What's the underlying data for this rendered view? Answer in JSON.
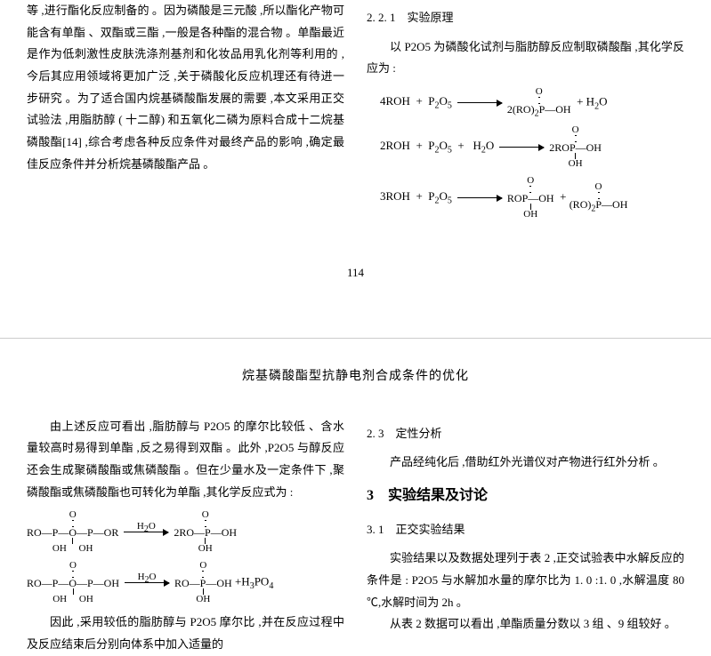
{
  "page1": {
    "left": {
      "p1": "等 ,进行酯化反应制备的 。因为磷酸是三元酸 ,所以酯化产物可能含有单酯 、双酯或三酯 ,一般是各种酯的混合物 。单酯最近是作为低刺激性皮肤洗涤剂基剂和化妆品用乳化剂等利用的 ,今后其应用领域将更加广泛 ,关于磷酸化反应机理还有待进一步研究 。为了适合国内烷基磷酸酯发展的需要 ,本文采用正交试验法 ,用脂肪醇 ( 十二醇) 和五氧化二磷为原料合成十二烷基磷酸酯[14] ,综合考虑各种反应条件对最终产品的影响 ,确定最佳反应条件并分析烷基磷酸酯产品 。"
    },
    "right": {
      "h1": "2. 2. 1　实验原理",
      "p1": "以 P2O5 为磷酸化试剂与脂肪醇反应制取磷酸酯 ,其化学反应为 :",
      "rx1_left": "4ROH  +  P2O5",
      "rx1_right_a": "2(RO)2P—OH  +  H2O",
      "rx2_left": "2ROH  +  P2O5  +    H2O",
      "rx2_right": "2ROP—OH",
      "rx3_left": "3ROH  +  P2O5",
      "rx3_right_a": "ROP—OH  + (RO)2P—OH"
    },
    "pagenum": "114"
  },
  "page2": {
    "title": "烷基磷酸酯型抗静电剂合成条件的优化",
    "left": {
      "p1": "由上述反应可看出 ,脂肪醇与 P2O5 的摩尔比较低 、含水量较高时易得到单酯 ,反之易得到双酯 。此外 ,P2O5 与醇反应还会生成聚磷酸酯或焦磷酸酯 。但在少量水及一定条件下 ,聚磷酸酯或焦磷酸酯也可转化为单酯 ,其化学反应式为 :",
      "p2": "因此 ,采用较低的脂肪醇与 P2O5 摩尔比 ,并在反应过程中及反应结束后分别向体系中加入适量的"
    },
    "right": {
      "h1": "2. 3　定性分析",
      "p1": "产品经纯化后 ,借助红外光谱仪对产物进行红外分析 。",
      "h2": "3　实验结果及讨论",
      "h3": "3. 1　正交实验结果",
      "p2": "实验结果以及数据处理列于表 2 ,正交试验表中水解反应的条件是 : P2O5 与水解加水量的摩尔比为 1. 0 :1. 0 ,水解温度 80 ℃,水解时间为 2h 。",
      "p3": "从表 2 数据可以看出 ,单酯质量分数以 3 组 、9 组较好 。"
    }
  }
}
